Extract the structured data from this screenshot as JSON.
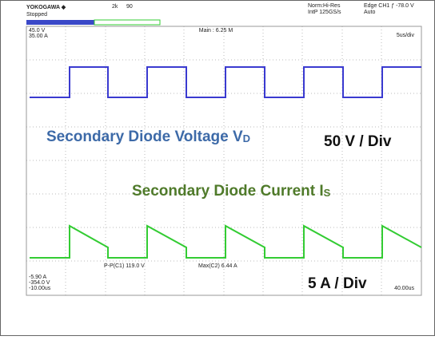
{
  "header": {
    "brand": "YOKOGAWA ◆",
    "status": "Stopped",
    "record": "2k",
    "count": "90",
    "mode": "Norm:Hi-Res",
    "sample": "IntP 125GS/s",
    "trigger": "Edge CH1 ƒ -78.0 V",
    "trigger_mode": "Auto"
  },
  "scales": {
    "ch1": "45.0 V",
    "ch2": "35.00 A",
    "main": "Main : 6.25 M",
    "timebase": "5us/div"
  },
  "readouts": {
    "pp": "P-P(C1) 119.0 V",
    "max": "Max(C2) 6.44 A"
  },
  "footer": {
    "ch2_offset": "-5.90 A",
    "ch1_offset": "-354.0 V",
    "start": "-10.00us",
    "end": "40.00us"
  },
  "annotations": {
    "voltage": {
      "text": "Secondary Diode Voltage V",
      "sub": "D"
    },
    "voltage_scale": "50 V / Div",
    "current": {
      "text": "Secondary Diode Current I",
      "sub": "S"
    },
    "current_scale": "5 A / Div"
  }
}
